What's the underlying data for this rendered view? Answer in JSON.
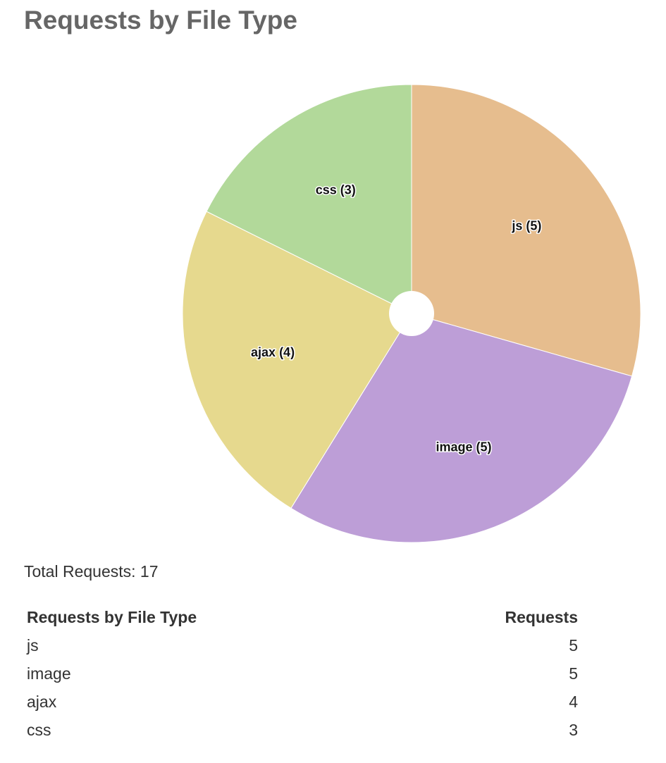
{
  "title": "Requests by File Type",
  "chart_data": {
    "type": "pie",
    "categories": [
      "js",
      "image",
      "ajax",
      "css"
    ],
    "values": [
      5,
      5,
      4,
      3
    ],
    "labels": [
      "js (5)",
      "image (5)",
      "ajax (4)",
      "css (3)"
    ],
    "colors": [
      "#e6bd8e",
      "#bd9ed7",
      "#e6d98e",
      "#b2d99a"
    ],
    "legend": "none"
  },
  "total": {
    "text": "Total Requests: 17"
  },
  "table": {
    "headers": [
      "Requests by File Type",
      "Requests"
    ],
    "rows": [
      {
        "type": "js",
        "requests": "5"
      },
      {
        "type": "image",
        "requests": "5"
      },
      {
        "type": "ajax",
        "requests": "4"
      },
      {
        "type": "css",
        "requests": "3"
      }
    ]
  }
}
